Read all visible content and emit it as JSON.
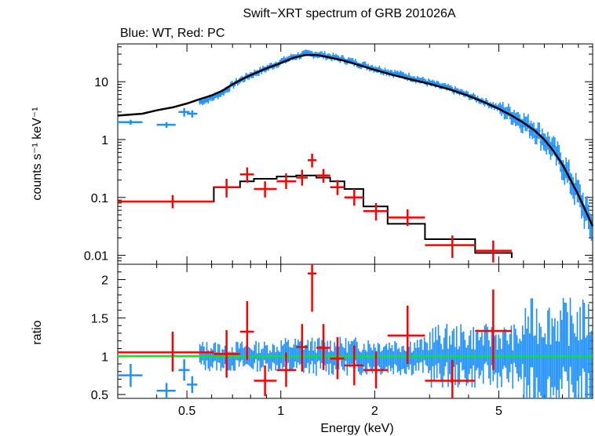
{
  "chart_data": [
    {
      "type": "scatter",
      "panel": "spectrum",
      "title": "Swift−XRT spectrum of GRB 201026A",
      "subtitle": "Blue: WT, Red: PC",
      "xlabel": "Energy (keV)",
      "ylabel": "counts s⁻¹ keV⁻¹",
      "xscale": "log",
      "yscale": "log",
      "xlim": [
        0.3,
        10
      ],
      "ylim": [
        0.007,
        45
      ],
      "yticks": [
        {
          "v": 10,
          "label": "10"
        },
        {
          "v": 1,
          "label": "1"
        },
        {
          "v": 0.1,
          "label": "0.1"
        },
        {
          "v": 0.01,
          "label": "0.01"
        }
      ],
      "series": [
        {
          "name": "WT",
          "color": "#1e90ff",
          "points": [
            {
              "x": 0.33,
              "xlo": 0.3,
              "xhi": 0.36,
              "y": 2.0,
              "ylo": 1.8,
              "yhi": 2.2
            },
            {
              "x": 0.43,
              "xlo": 0.4,
              "xhi": 0.46,
              "y": 1.8,
              "ylo": 1.6,
              "yhi": 2.0
            },
            {
              "x": 0.49,
              "xlo": 0.47,
              "xhi": 0.51,
              "y": 3.0,
              "ylo": 2.5,
              "yhi": 3.5
            },
            {
              "x": 0.52,
              "xlo": 0.5,
              "xhi": 0.54,
              "y": 2.8,
              "ylo": 2.4,
              "yhi": 3.2
            }
          ],
          "dense": [
            {
              "x": 0.55,
              "y": 4.5
            },
            {
              "x": 0.6,
              "y": 5.2
            },
            {
              "x": 0.65,
              "y": 6.5
            },
            {
              "x": 0.7,
              "y": 8.8
            },
            {
              "x": 0.75,
              "y": 11
            },
            {
              "x": 0.8,
              "y": 13
            },
            {
              "x": 0.9,
              "y": 17
            },
            {
              "x": 1.0,
              "y": 22
            },
            {
              "x": 1.1,
              "y": 27
            },
            {
              "x": 1.2,
              "y": 30
            },
            {
              "x": 1.3,
              "y": 30
            },
            {
              "x": 1.4,
              "y": 28
            },
            {
              "x": 1.6,
              "y": 24
            },
            {
              "x": 1.8,
              "y": 20
            },
            {
              "x": 2.0,
              "y": 17
            },
            {
              "x": 2.3,
              "y": 14
            },
            {
              "x": 2.6,
              "y": 12
            },
            {
              "x": 3.0,
              "y": 9.5
            },
            {
              "x": 3.5,
              "y": 7.5
            },
            {
              "x": 4.0,
              "y": 5.8
            },
            {
              "x": 4.5,
              "y": 4.5
            },
            {
              "x": 5.0,
              "y": 3.5
            },
            {
              "x": 5.5,
              "y": 2.7
            },
            {
              "x": 6.0,
              "y": 2.0
            },
            {
              "x": 6.5,
              "y": 1.5
            },
            {
              "x": 7.0,
              "y": 1.0
            },
            {
              "x": 7.5,
              "y": 0.65
            },
            {
              "x": 8.0,
              "y": 0.38
            },
            {
              "x": 8.5,
              "y": 0.2
            },
            {
              "x": 9.0,
              "y": 0.11
            },
            {
              "x": 9.5,
              "y": 0.055
            },
            {
              "x": 10.0,
              "y": 0.03
            }
          ],
          "model": [
            {
              "x": 0.3,
              "y": 2.6
            },
            {
              "x": 0.36,
              "y": 2.8
            },
            {
              "x": 0.4,
              "y": 3.2
            },
            {
              "x": 0.45,
              "y": 3.6
            },
            {
              "x": 0.5,
              "y": 4.2
            },
            {
              "x": 0.55,
              "y": 5.0
            },
            {
              "x": 0.6,
              "y": 5.8
            },
            {
              "x": 0.65,
              "y": 7.0
            },
            {
              "x": 0.7,
              "y": 9.0
            },
            {
              "x": 0.75,
              "y": 11
            },
            {
              "x": 0.8,
              "y": 13
            },
            {
              "x": 0.9,
              "y": 17
            },
            {
              "x": 1.0,
              "y": 21
            },
            {
              "x": 1.1,
              "y": 26
            },
            {
              "x": 1.2,
              "y": 29
            },
            {
              "x": 1.3,
              "y": 29
            },
            {
              "x": 1.4,
              "y": 27
            },
            {
              "x": 1.6,
              "y": 23
            },
            {
              "x": 1.8,
              "y": 19
            },
            {
              "x": 2.0,
              "y": 16
            },
            {
              "x": 2.3,
              "y": 13
            },
            {
              "x": 2.6,
              "y": 11
            },
            {
              "x": 3.0,
              "y": 9.2
            },
            {
              "x": 3.5,
              "y": 7.3
            },
            {
              "x": 4.0,
              "y": 5.7
            },
            {
              "x": 4.5,
              "y": 4.4
            },
            {
              "x": 5.0,
              "y": 3.4
            },
            {
              "x": 5.5,
              "y": 2.6
            },
            {
              "x": 6.0,
              "y": 1.95
            },
            {
              "x": 6.5,
              "y": 1.45
            },
            {
              "x": 7.0,
              "y": 1.0
            },
            {
              "x": 7.5,
              "y": 0.63
            },
            {
              "x": 8.0,
              "y": 0.37
            },
            {
              "x": 8.5,
              "y": 0.2
            },
            {
              "x": 9.0,
              "y": 0.11
            },
            {
              "x": 9.5,
              "y": 0.058
            },
            {
              "x": 10.0,
              "y": 0.032
            }
          ]
        },
        {
          "name": "PC",
          "color": "#ff0000",
          "points": [
            {
              "x": 0.45,
              "xlo": 0.3,
              "xhi": 0.61,
              "y": 0.085,
              "ylo": 0.065,
              "yhi": 0.11
            },
            {
              "x": 0.67,
              "xlo": 0.61,
              "xhi": 0.74,
              "y": 0.15,
              "ylo": 0.1,
              "yhi": 0.21
            },
            {
              "x": 0.78,
              "xlo": 0.74,
              "xhi": 0.82,
              "y": 0.25,
              "ylo": 0.18,
              "yhi": 0.33
            },
            {
              "x": 0.89,
              "xlo": 0.82,
              "xhi": 0.97,
              "y": 0.14,
              "ylo": 0.1,
              "yhi": 0.19
            },
            {
              "x": 1.04,
              "xlo": 0.97,
              "xhi": 1.12,
              "y": 0.19,
              "ylo": 0.14,
              "yhi": 0.26
            },
            {
              "x": 1.17,
              "xlo": 1.12,
              "xhi": 1.22,
              "y": 0.22,
              "ylo": 0.16,
              "yhi": 0.3
            },
            {
              "x": 1.26,
              "xlo": 1.22,
              "xhi": 1.3,
              "y": 0.44,
              "ylo": 0.33,
              "yhi": 0.57
            },
            {
              "x": 1.37,
              "xlo": 1.3,
              "xhi": 1.44,
              "y": 0.24,
              "ylo": 0.18,
              "yhi": 0.31
            },
            {
              "x": 1.52,
              "xlo": 1.44,
              "xhi": 1.6,
              "y": 0.15,
              "ylo": 0.11,
              "yhi": 0.2
            },
            {
              "x": 1.72,
              "xlo": 1.6,
              "xhi": 1.84,
              "y": 0.1,
              "ylo": 0.072,
              "yhi": 0.14
            },
            {
              "x": 2.02,
              "xlo": 1.84,
              "xhi": 2.2,
              "y": 0.058,
              "ylo": 0.04,
              "yhi": 0.08
            },
            {
              "x": 2.55,
              "xlo": 2.2,
              "xhi": 2.9,
              "y": 0.045,
              "ylo": 0.032,
              "yhi": 0.062
            },
            {
              "x": 3.55,
              "xlo": 2.9,
              "xhi": 4.2,
              "y": 0.015,
              "ylo": 0.009,
              "yhi": 0.022
            },
            {
              "x": 4.8,
              "xlo": 4.2,
              "xhi": 5.5,
              "y": 0.012,
              "ylo": 0.0075,
              "yhi": 0.018
            }
          ],
          "model_steps": [
            {
              "x0": 0.3,
              "x1": 0.61,
              "y": 0.085
            },
            {
              "x0": 0.61,
              "x1": 0.74,
              "y": 0.15
            },
            {
              "x0": 0.74,
              "x1": 0.82,
              "y": 0.19
            },
            {
              "x0": 0.82,
              "x1": 0.97,
              "y": 0.21
            },
            {
              "x0": 0.97,
              "x1": 1.12,
              "y": 0.23
            },
            {
              "x0": 1.12,
              "x1": 1.22,
              "y": 0.24
            },
            {
              "x0": 1.22,
              "x1": 1.3,
              "y": 0.24
            },
            {
              "x0": 1.3,
              "x1": 1.44,
              "y": 0.22
            },
            {
              "x0": 1.44,
              "x1": 1.6,
              "y": 0.19
            },
            {
              "x0": 1.6,
              "x1": 1.84,
              "y": 0.14
            },
            {
              "x0": 1.84,
              "x1": 2.2,
              "y": 0.07
            },
            {
              "x0": 2.2,
              "x1": 2.9,
              "y": 0.035
            },
            {
              "x0": 2.9,
              "x1": 4.2,
              "y": 0.019
            },
            {
              "x0": 4.2,
              "x1": 5.5,
              "y": 0.011
            },
            {
              "x0": 5.5,
              "x1": 5.5,
              "y": 0.009
            }
          ]
        }
      ]
    },
    {
      "type": "scatter",
      "panel": "ratio",
      "ylabel": "ratio",
      "xlabel": "Energy (keV)",
      "xscale": "log",
      "xlim": [
        0.3,
        10
      ],
      "ylim": [
        0.45,
        2.2
      ],
      "xticks": [
        {
          "v": 0.5,
          "label": "0.5"
        },
        {
          "v": 1,
          "label": "1"
        },
        {
          "v": 2,
          "label": "2"
        },
        {
          "v": 5,
          "label": "5"
        }
      ],
      "yticks": [
        {
          "v": 0.5,
          "label": "0.5"
        },
        {
          "v": 1,
          "label": "1"
        },
        {
          "v": 1.5,
          "label": "1.5"
        },
        {
          "v": 2,
          "label": "2"
        }
      ],
      "reference_line": {
        "y": 1,
        "color": "#00ee00"
      },
      "series": [
        {
          "name": "WT",
          "color": "#1e90ff",
          "points": [
            {
              "x": 0.33,
              "xlo": 0.3,
              "xhi": 0.36,
              "y": 0.75,
              "ylo": 0.6,
              "yhi": 0.9
            },
            {
              "x": 0.43,
              "xlo": 0.4,
              "xhi": 0.46,
              "y": 0.55,
              "ylo": 0.45,
              "yhi": 0.65
            },
            {
              "x": 0.49,
              "xlo": 0.47,
              "xhi": 0.51,
              "y": 0.82,
              "ylo": 0.68,
              "yhi": 0.96
            },
            {
              "x": 0.52,
              "xlo": 0.5,
              "xhi": 0.54,
              "y": 0.63,
              "ylo": 0.52,
              "yhi": 0.74
            }
          ],
          "dense": [
            {
              "x": 0.55,
              "y": 1.0
            },
            {
              "x": 0.6,
              "y": 1.02
            },
            {
              "x": 0.65,
              "y": 0.95
            },
            {
              "x": 0.7,
              "y": 1.05
            },
            {
              "x": 0.8,
              "y": 1.0
            },
            {
              "x": 0.9,
              "y": 0.98
            },
            {
              "x": 1.0,
              "y": 1.02
            },
            {
              "x": 1.2,
              "y": 1.0
            },
            {
              "x": 1.4,
              "y": 1.01
            },
            {
              "x": 1.7,
              "y": 0.99
            },
            {
              "x": 2.0,
              "y": 1.0
            },
            {
              "x": 2.5,
              "y": 1.02
            },
            {
              "x": 3.0,
              "y": 0.98
            },
            {
              "x": 4.0,
              "y": 1.0
            },
            {
              "x": 5.0,
              "y": 1.03
            },
            {
              "x": 6.0,
              "y": 0.97
            },
            {
              "x": 7.0,
              "y": 1.05
            },
            {
              "x": 8.0,
              "y": 0.95
            },
            {
              "x": 9.0,
              "y": 1.1
            },
            {
              "x": 10.0,
              "y": 1.0
            }
          ]
        },
        {
          "name": "PC",
          "color": "#ff0000",
          "points": [
            {
              "x": 0.45,
              "xlo": 0.3,
              "xhi": 0.61,
              "y": 1.05,
              "ylo": 0.8,
              "yhi": 1.32
            },
            {
              "x": 0.67,
              "xlo": 0.61,
              "xhi": 0.74,
              "y": 1.03,
              "ylo": 0.72,
              "yhi": 1.34
            },
            {
              "x": 0.78,
              "xlo": 0.74,
              "xhi": 0.82,
              "y": 1.32,
              "ylo": 0.95,
              "yhi": 1.72
            },
            {
              "x": 0.89,
              "xlo": 0.82,
              "xhi": 0.97,
              "y": 0.68,
              "ylo": 0.48,
              "yhi": 0.88
            },
            {
              "x": 1.04,
              "xlo": 0.97,
              "xhi": 1.12,
              "y": 0.82,
              "ylo": 0.6,
              "yhi": 1.05
            },
            {
              "x": 1.17,
              "xlo": 1.12,
              "xhi": 1.22,
              "y": 1.12,
              "ylo": 0.8,
              "yhi": 1.42
            },
            {
              "x": 1.26,
              "xlo": 1.22,
              "xhi": 1.3,
              "y": 2.08,
              "ylo": 1.58,
              "yhi": 2.2
            },
            {
              "x": 1.37,
              "xlo": 1.3,
              "xhi": 1.44,
              "y": 1.11,
              "ylo": 0.82,
              "yhi": 1.42
            },
            {
              "x": 1.52,
              "xlo": 1.44,
              "xhi": 1.6,
              "y": 0.97,
              "ylo": 0.7,
              "yhi": 1.25
            },
            {
              "x": 1.72,
              "xlo": 1.6,
              "xhi": 1.84,
              "y": 0.88,
              "ylo": 0.62,
              "yhi": 1.14
            },
            {
              "x": 2.02,
              "xlo": 1.84,
              "xhi": 2.2,
              "y": 0.82,
              "ylo": 0.58,
              "yhi": 1.06
            },
            {
              "x": 2.55,
              "xlo": 2.2,
              "xhi": 2.9,
              "y": 1.27,
              "ylo": 0.9,
              "yhi": 1.66
            },
            {
              "x": 3.55,
              "xlo": 2.9,
              "xhi": 4.2,
              "y": 0.68,
              "ylo": 0.45,
              "yhi": 0.95
            },
            {
              "x": 4.8,
              "xlo": 4.2,
              "xhi": 5.5,
              "y": 1.33,
              "ylo": 0.82,
              "yhi": 1.87
            }
          ]
        }
      ]
    }
  ]
}
